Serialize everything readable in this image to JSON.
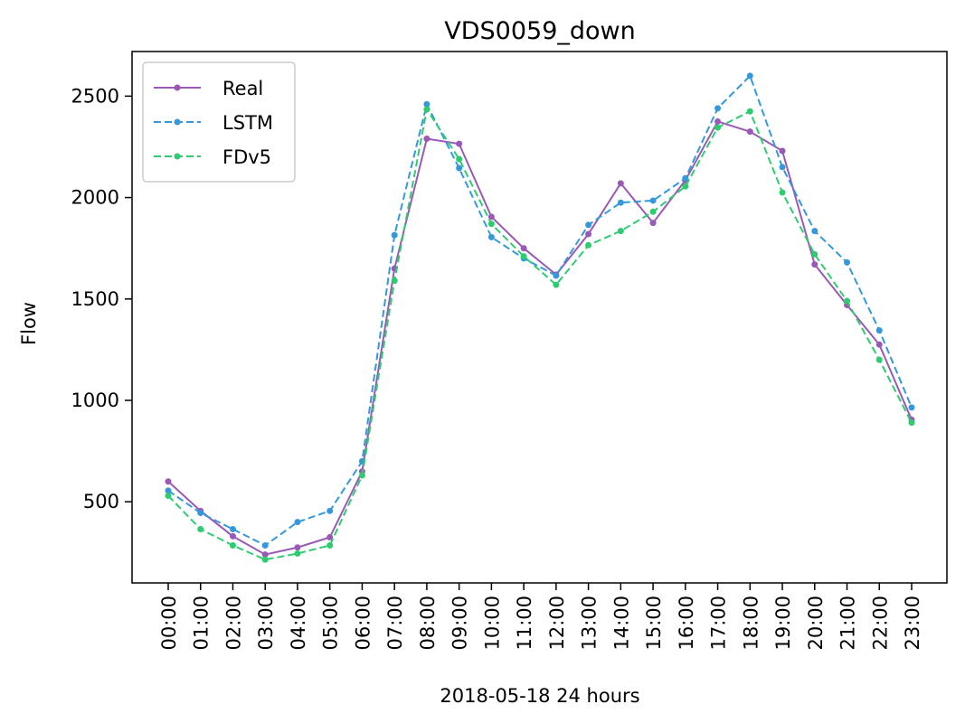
{
  "chart_data": {
    "type": "line",
    "title": "VDS0059_down",
    "xlabel": "2018-05-18 24 hours",
    "ylabel": "Flow",
    "x": [
      "00:00",
      "01:00",
      "02:00",
      "03:00",
      "04:00",
      "05:00",
      "06:00",
      "07:00",
      "08:00",
      "09:00",
      "10:00",
      "11:00",
      "12:00",
      "13:00",
      "14:00",
      "15:00",
      "16:00",
      "17:00",
      "18:00",
      "19:00",
      "20:00",
      "21:00",
      "22:00",
      "23:00"
    ],
    "yticks": [
      "500",
      "1000",
      "1500",
      "2000",
      "2500"
    ],
    "ylim": [
      100,
      2720
    ],
    "grid": false,
    "legend_position": "top-left",
    "series": [
      {
        "name": "Real",
        "color": "#9b59b6",
        "style": "solid",
        "values": [
          600,
          455,
          330,
          240,
          275,
          325,
          650,
          1650,
          2290,
          2265,
          1905,
          1750,
          1620,
          1820,
          2070,
          1875,
          2085,
          2375,
          2325,
          2230,
          1670,
          1470,
          1275,
          905
        ]
      },
      {
        "name": "LSTM",
        "color": "#3498db",
        "style": "dashed",
        "values": [
          555,
          445,
          365,
          285,
          400,
          455,
          700,
          1815,
          2460,
          2145,
          1805,
          1700,
          1615,
          1865,
          1975,
          1985,
          2095,
          2440,
          2600,
          2150,
          1835,
          1680,
          1345,
          965
        ]
      },
      {
        "name": "FDv5",
        "color": "#2ecc71",
        "style": "dashed",
        "values": [
          530,
          365,
          285,
          215,
          245,
          285,
          630,
          1590,
          2435,
          2190,
          1870,
          1710,
          1570,
          1765,
          1835,
          1930,
          2055,
          2345,
          2425,
          2025,
          1720,
          1490,
          1200,
          890
        ]
      }
    ]
  }
}
